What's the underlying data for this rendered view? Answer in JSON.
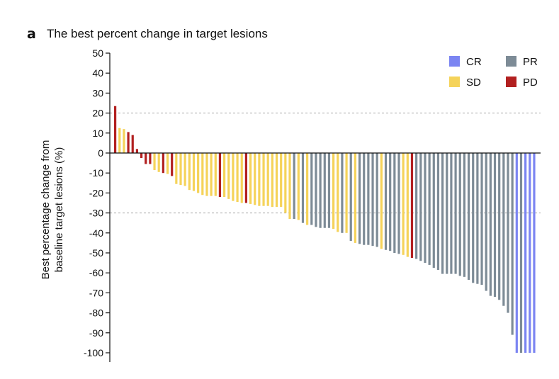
{
  "panel_label": "a",
  "colors": {
    "CR": "#7b85f2",
    "PR": "#7d8b96",
    "SD": "#f5d35a",
    "PD": "#b22020",
    "axis": "#111111",
    "guide": "#aaaaaa"
  },
  "chart_data": {
    "type": "bar",
    "title": "The best percent change in target lesions",
    "ylabel_lines": [
      "Best percentage change from",
      "baseline target lesions (%)"
    ],
    "ylim": [
      -100,
      50
    ],
    "yticks": [
      50,
      40,
      30,
      20,
      10,
      0,
      -10,
      -20,
      -30,
      -40,
      -50,
      -60,
      -70,
      -80,
      -90,
      -100
    ],
    "reference_lines": [
      20,
      -30
    ],
    "legend": {
      "position": "top-right",
      "entries": [
        "CR",
        "PR",
        "SD",
        "PD"
      ]
    },
    "categories_order": "patients ranked by best percent change",
    "values": [
      23.5,
      12.5,
      12,
      10.5,
      9,
      2,
      -2.5,
      -5.5,
      -5.5,
      -8.5,
      -9.5,
      -10,
      -10.5,
      -11.5,
      -15.5,
      -16,
      -16.5,
      -18.5,
      -19,
      -20,
      -21,
      -21.5,
      -21.5,
      -21.5,
      -22,
      -22,
      -23,
      -24,
      -24.5,
      -25,
      -25,
      -25.5,
      -26,
      -26.5,
      -26.5,
      -26.5,
      -27,
      -27,
      -27,
      -30,
      -33,
      -33,
      -33.5,
      -35,
      -36,
      -36,
      -37,
      -37.5,
      -37.5,
      -37.5,
      -38,
      -39.5,
      -40,
      -40,
      -44,
      -45,
      -45.5,
      -46,
      -46,
      -46.5,
      -47,
      -48,
      -48.5,
      -49,
      -50,
      -50.5,
      -51,
      -52,
      -52.5,
      -53,
      -54,
      -55,
      -56,
      -57.5,
      -58.5,
      -60.5,
      -60.5,
      -60.5,
      -60.5,
      -61.5,
      -62,
      -63.5,
      -65,
      -65.5,
      -66,
      -69,
      -71.5,
      -72,
      -73.5,
      -76.5,
      -80,
      -91,
      -100,
      -100,
      -100,
      -100,
      -100
    ],
    "groups": [
      "PD",
      "SD",
      "SD",
      "PD",
      "PD",
      "PD",
      "PD",
      "PD",
      "PD",
      "SD",
      "SD",
      "PD",
      "SD",
      "PD",
      "SD",
      "SD",
      "SD",
      "SD",
      "SD",
      "SD",
      "SD",
      "SD",
      "SD",
      "SD",
      "PD",
      "SD",
      "SD",
      "SD",
      "SD",
      "SD",
      "PD",
      "SD",
      "SD",
      "SD",
      "SD",
      "SD",
      "SD",
      "SD",
      "SD",
      "SD",
      "SD",
      "PR",
      "SD",
      "PR",
      "SD",
      "PR",
      "PR",
      "PR",
      "PR",
      "PR",
      "SD",
      "SD",
      "PR",
      "SD",
      "PR",
      "SD",
      "PR",
      "PR",
      "PR",
      "PR",
      "PR",
      "SD",
      "PR",
      "PR",
      "PR",
      "PR",
      "SD",
      "SD",
      "PD",
      "PR",
      "PR",
      "PR",
      "PR",
      "PR",
      "PR",
      "PR",
      "PR",
      "PR",
      "PR",
      "PR",
      "PR",
      "PR",
      "PR",
      "PR",
      "PR",
      "PR",
      "PR",
      "PR",
      "PR",
      "PR",
      "PR",
      "PR",
      "CR",
      "PR",
      "CR",
      "CR",
      "CR",
      "CR"
    ]
  }
}
